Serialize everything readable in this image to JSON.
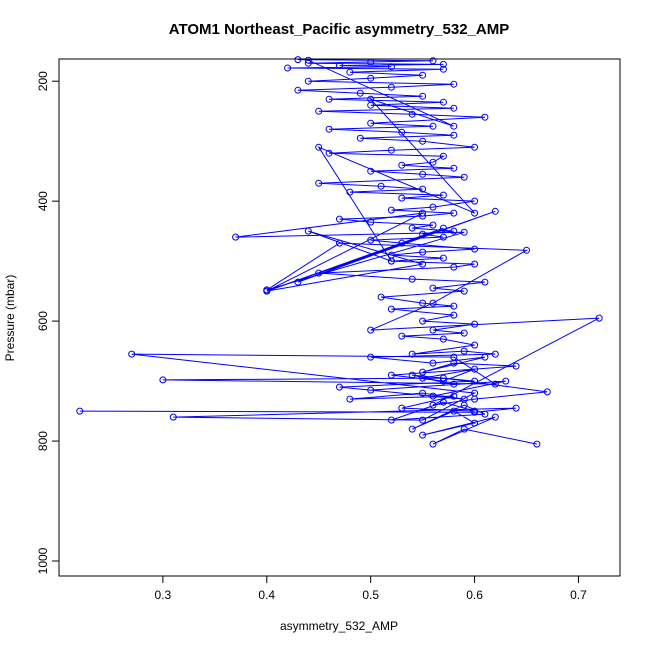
{
  "chart_data": {
    "type": "line",
    "title": "ATOM1 Northeast_Pacific asymmetry_532_AMP",
    "xlabel": "asymmetry_532_AMP",
    "ylabel": "Pressure (mbar)",
    "xlim": [
      0.2,
      0.74
    ],
    "ylim": [
      1025,
      163
    ],
    "y_reversed": true,
    "x_ticks": [
      0.3,
      0.4,
      0.5,
      0.6,
      0.7
    ],
    "x_tick_labels": [
      "0.3",
      "0.4",
      "0.5",
      "0.6",
      "0.7"
    ],
    "y_ticks": [
      200,
      400,
      600,
      800,
      1000
    ],
    "y_tick_labels": [
      "200",
      "400",
      "600",
      "800",
      "1000"
    ],
    "grid": false,
    "legend": "none",
    "colors": {
      "series": "#0000ff",
      "axis": "#000000",
      "background": "#ffffff"
    },
    "series": [
      {
        "x": [
          0.66,
          0.59,
          0.56,
          0.62,
          0.55,
          0.6,
          0.58,
          0.54,
          0.59,
          0.61,
          0.52,
          0.57,
          0.6,
          0.53,
          0.58,
          0.48,
          0.55,
          0.59,
          0.5,
          0.63,
          0.56,
          0.47,
          0.6,
          0.54,
          0.58,
          0.55,
          0.6,
          0.57,
          0.52,
          0.64,
          0.58,
          0.55,
          0.61,
          0.56,
          0.5,
          0.62,
          0.59,
          0.54,
          0.6,
          0.57,
          0.53,
          0.59,
          0.56,
          0.6,
          0.55,
          0.58,
          0.52,
          0.58,
          0.55,
          0.51,
          0.59,
          0.56,
          0.61,
          0.54,
          0.45,
          0.58,
          0.6,
          0.52,
          0.57,
          0.52,
          0.55,
          0.6,
          0.53,
          0.5,
          0.57,
          0.55,
          0.58,
          0.54,
          0.56,
          0.5,
          0.47,
          0.55,
          0.58,
          0.52,
          0.56,
          0.6,
          0.53,
          0.57,
          0.48,
          0.55,
          0.51,
          0.45,
          0.59,
          0.55,
          0.5,
          0.58,
          0.53,
          0.56,
          0.57,
          0.46,
          0.52,
          0.6,
          0.55,
          0.49,
          0.58,
          0.53,
          0.46,
          0.56,
          0.5,
          0.61,
          0.54,
          0.45,
          0.58,
          0.5,
          0.57,
          0.46,
          0.55,
          0.49,
          0.43,
          0.52,
          0.58,
          0.44,
          0.5,
          0.55,
          0.48,
          0.57,
          0.42,
          0.52,
          0.47,
          0.57,
          0.44,
          0.5,
          0.56,
          0.43
        ],
        "y": [
          805,
          780,
          805,
          760,
          790,
          770,
          750,
          780,
          740,
          755,
          765,
          735,
          750,
          745,
          725,
          730,
          720,
          730,
          715,
          700,
          725,
          710,
          700,
          690,
          705,
          695,
          680,
          700,
          690,
          675,
          670,
          685,
          660,
          670,
          660,
          655,
          650,
          655,
          640,
          630,
          625,
          620,
          615,
          605,
          600,
          590,
          580,
          575,
          570,
          560,
          550,
          545,
          535,
          530,
          520,
          510,
          505,
          500,
          495,
          490,
          485,
          480,
          470,
          465,
          460,
          455,
          450,
          445,
          440,
          435,
          430,
          425,
          420,
          415,
          410,
          400,
          395,
          390,
          385,
          380,
          375,
          370,
          360,
          355,
          350,
          345,
          340,
          335,
          325,
          320,
          315,
          310,
          300,
          295,
          290,
          285,
          280,
          275,
          270,
          260,
          255,
          250,
          245,
          240,
          235,
          230,
          225,
          220,
          215,
          210,
          205,
          200,
          195,
          190,
          185,
          180,
          178,
          176,
          174,
          172,
          170,
          168,
          166,
          164
        ]
      },
      {
        "x": [
          0.22,
          0.6,
          0.64,
          0.31,
          0.55,
          0.6,
          0.27,
          0.58,
          0.62,
          0.3,
          0.57,
          0.67,
          0.6,
          0.56,
          0.72,
          0.5,
          0.56,
          0.65,
          0.47,
          0.4,
          0.59,
          0.37,
          0.55,
          0.4,
          0.57,
          0.43,
          0.62,
          0.4,
          0.55,
          0.44,
          0.52,
          0.45,
          0.6,
          0.5,
          0.58,
          0.44
        ],
        "y": [
          750,
          752,
          745,
          760,
          765,
          720,
          655,
          660,
          705,
          698,
          695,
          718,
          730,
          740,
          595,
          615,
          570,
          482,
          470,
          548,
          452,
          460,
          420,
          550,
          445,
          535,
          417,
          550,
          505,
          450,
          500,
          310,
          420,
          230,
          275,
          165
        ]
      }
    ]
  }
}
